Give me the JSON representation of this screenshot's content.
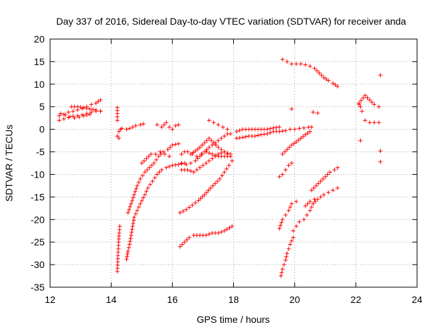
{
  "chart_data": {
    "type": "scatter",
    "title": "Day 337 of 2016, Sidereal Day-to-day VTEC variation (SDTVAR) for receiver anda",
    "xlabel": "GPS time / hours",
    "ylabel": "SDTVAR / TECUs",
    "xlim": [
      12,
      24
    ],
    "ylim": [
      -35,
      20
    ],
    "xticks": [
      12,
      14,
      16,
      18,
      20,
      22,
      24
    ],
    "yticks": [
      -35,
      -30,
      -25,
      -20,
      -15,
      -10,
      -5,
      0,
      5,
      10,
      15,
      20
    ],
    "grid": true,
    "marker": "plus",
    "color": "#ff0000",
    "series": [
      {
        "segments": [
          [
            [
              12.3,
              3.0
            ],
            [
              12.45,
              3.3
            ],
            [
              12.6,
              3.8
            ],
            [
              12.75,
              4.0
            ],
            [
              12.9,
              4.3
            ],
            [
              13.05,
              4.6
            ],
            [
              13.2,
              5.0
            ],
            [
              13.35,
              5.5
            ],
            [
              13.5,
              5.8
            ],
            [
              13.65,
              6.5
            ]
          ],
          [
            [
              12.3,
              2.0
            ],
            [
              12.45,
              2.3
            ],
            [
              12.6,
              2.6
            ],
            [
              12.75,
              2.9
            ],
            [
              12.9,
              3.0
            ],
            [
              13.05,
              3.2
            ],
            [
              13.2,
              3.5
            ],
            [
              13.35,
              3.8
            ],
            [
              13.5,
              4.0
            ],
            [
              13.65,
              4.0
            ]
          ],
          [
            [
              12.35,
              3.5
            ],
            [
              12.5,
              3.2
            ],
            [
              12.65,
              2.8
            ],
            [
              12.8,
              2.5
            ],
            [
              12.95,
              2.7
            ],
            [
              13.1,
              3.0
            ],
            [
              13.3,
              3.3
            ]
          ],
          [
            [
              12.7,
              5.0
            ],
            [
              12.9,
              5.0
            ],
            [
              13.1,
              4.8
            ],
            [
              13.3,
              4.5
            ],
            [
              13.5,
              4.3
            ],
            [
              13.65,
              4.0
            ]
          ]
        ]
      },
      {
        "segments": [
          [
            [
              14.2,
              4.8
            ],
            [
              14.2,
              3.5
            ],
            [
              14.2,
              2.0
            ]
          ],
          [
            [
              14.25,
              -0.5
            ],
            [
              14.3,
              0
            ],
            [
              14.35,
              0.2
            ]
          ],
          [
            [
              14.2,
              -1.5
            ],
            [
              14.25,
              -2.0
            ]
          ],
          [
            [
              14.5,
              0
            ],
            [
              14.6,
              0.2
            ],
            [
              14.7,
              0.5
            ],
            [
              14.8,
              0.8
            ],
            [
              14.95,
              1.0
            ],
            [
              15.05,
              1.2
            ]
          ],
          [
            [
              14.2,
              -31.5
            ],
            [
              14.22,
              -28.0
            ],
            [
              14.24,
              -25.0
            ],
            [
              14.26,
              -23.0
            ],
            [
              14.28,
              -21.5
            ]
          ],
          [
            [
              14.5,
              -28.8
            ],
            [
              14.55,
              -27.0
            ],
            [
              14.6,
              -25.5
            ],
            [
              14.65,
              -23.5
            ],
            [
              14.7,
              -21.5
            ],
            [
              14.75,
              -19.5
            ],
            [
              14.85,
              -18.0
            ],
            [
              14.95,
              -16.5
            ],
            [
              15.1,
              -14.5
            ],
            [
              15.2,
              -13.0
            ],
            [
              15.35,
              -11.5
            ],
            [
              15.5,
              -10.0
            ],
            [
              15.65,
              -9.0
            ],
            [
              15.8,
              -8.5
            ],
            [
              16.0,
              -8.0
            ],
            [
              16.2,
              -7.8
            ],
            [
              16.4,
              -7.5
            ]
          ],
          [
            [
              14.55,
              -18.5
            ],
            [
              14.65,
              -16.5
            ],
            [
              14.75,
              -14.5
            ],
            [
              14.85,
              -12.5
            ],
            [
              14.95,
              -11.0
            ],
            [
              15.1,
              -9.5
            ],
            [
              15.25,
              -8.5
            ],
            [
              15.4,
              -7.5
            ],
            [
              15.55,
              -6.0
            ],
            [
              15.7,
              -5.0
            ],
            [
              15.85,
              -4.5
            ],
            [
              16.0,
              -3.5
            ],
            [
              16.2,
              -3.2
            ]
          ],
          [
            [
              15.0,
              -7.5
            ],
            [
              15.15,
              -6.5
            ],
            [
              15.3,
              -5.5
            ],
            [
              15.45,
              -5.5
            ],
            [
              15.6,
              -5.0
            ],
            [
              15.75,
              -5.5
            ],
            [
              15.9,
              -6.0
            ]
          ],
          [
            [
              15.5,
              1.0
            ],
            [
              15.65,
              0.5
            ],
            [
              15.8,
              1.5
            ],
            [
              15.9,
              0.5
            ],
            [
              16.0,
              0
            ],
            [
              16.1,
              0.8
            ],
            [
              16.2,
              1.0
            ]
          ]
        ]
      },
      {
        "segments": [
          [
            [
              16.3,
              -5.5
            ],
            [
              16.4,
              -5.0
            ],
            [
              16.5,
              -5.0
            ],
            [
              16.65,
              -5.5
            ],
            [
              16.8,
              -6.0
            ],
            [
              16.95,
              -5.5
            ],
            [
              17.1,
              -5.0
            ],
            [
              17.3,
              -5.5
            ],
            [
              17.5,
              -6.0
            ],
            [
              17.7,
              -6.0
            ],
            [
              17.9,
              -6.0
            ]
          ],
          [
            [
              16.3,
              -7.5
            ],
            [
              16.45,
              -7.8
            ],
            [
              16.6,
              -7.5
            ],
            [
              16.75,
              -7.0
            ],
            [
              16.9,
              -6.0
            ],
            [
              17.05,
              -5.0
            ],
            [
              17.2,
              -4.0
            ],
            [
              17.4,
              -3.0
            ],
            [
              17.6,
              -2.0
            ],
            [
              17.8,
              -1.0
            ],
            [
              17.9,
              -1.0
            ]
          ],
          [
            [
              16.3,
              -9.0
            ],
            [
              16.5,
              -9.0
            ],
            [
              16.7,
              -9.5
            ],
            [
              16.9,
              -8.5
            ],
            [
              17.1,
              -7.5
            ],
            [
              17.3,
              -6.5
            ],
            [
              17.5,
              -5.5
            ],
            [
              17.7,
              -5.0
            ],
            [
              17.9,
              -5.5
            ]
          ],
          [
            [
              16.6,
              -5.5
            ],
            [
              16.75,
              -4.8
            ],
            [
              16.9,
              -4.0
            ],
            [
              17.05,
              -3.0
            ],
            [
              17.2,
              -2.0
            ],
            [
              17.35,
              -3.0
            ],
            [
              17.5,
              -4.0
            ],
            [
              17.7,
              -5.0
            ],
            [
              17.9,
              -6.0
            ]
          ],
          [
            [
              17.2,
              2.0
            ],
            [
              17.35,
              1.5
            ],
            [
              17.5,
              1.0
            ],
            [
              17.65,
              0.5
            ],
            [
              17.8,
              0
            ]
          ],
          [
            [
              16.25,
              -18.5
            ],
            [
              16.45,
              -17.8
            ],
            [
              16.65,
              -16.8
            ],
            [
              16.85,
              -15.8
            ],
            [
              17.05,
              -14.5
            ],
            [
              17.25,
              -13.0
            ],
            [
              17.4,
              -12.0
            ],
            [
              17.55,
              -11.0
            ],
            [
              17.7,
              -9.5
            ],
            [
              17.85,
              -8.0
            ],
            [
              17.95,
              -7.0
            ]
          ],
          [
            [
              16.25,
              -26.0
            ],
            [
              16.4,
              -25.0
            ],
            [
              16.55,
              -24.0
            ],
            [
              16.7,
              -23.5
            ],
            [
              16.9,
              -23.5
            ],
            [
              17.1,
              -23.5
            ],
            [
              17.3,
              -23.0
            ],
            [
              17.5,
              -23.0
            ],
            [
              17.7,
              -22.5
            ],
            [
              17.95,
              -21.5
            ]
          ]
        ]
      },
      {
        "segments": [
          [
            [
              18.1,
              -0.5
            ],
            [
              18.3,
              0
            ],
            [
              18.5,
              0
            ],
            [
              18.7,
              0
            ],
            [
              18.9,
              0
            ],
            [
              19.1,
              0
            ],
            [
              19.3,
              0.3
            ],
            [
              19.5,
              0.5
            ]
          ],
          [
            [
              18.1,
              -2.0
            ],
            [
              18.3,
              -1.8
            ],
            [
              18.5,
              -1.5
            ],
            [
              18.7,
              -1.5
            ],
            [
              18.9,
              -1.2
            ],
            [
              19.1,
              -1.0
            ],
            [
              19.3,
              -0.5
            ],
            [
              19.5,
              -0.5
            ],
            [
              19.7,
              -0.3
            ],
            [
              19.85,
              0
            ]
          ],
          [
            [
              20.0,
              0
            ],
            [
              20.15,
              0.2
            ],
            [
              20.3,
              0.3
            ],
            [
              20.45,
              0.5
            ],
            [
              20.55,
              0.5
            ]
          ]
        ]
      },
      {
        "segments": [
          [
            [
              19.6,
              15.5
            ],
            [
              19.75,
              15.0
            ],
            [
              19.9,
              14.5
            ],
            [
              20.05,
              14.5
            ],
            [
              20.2,
              14.5
            ],
            [
              20.35,
              14.3
            ],
            [
              20.5,
              14.0
            ],
            [
              20.65,
              13.5
            ],
            [
              20.8,
              12.5
            ],
            [
              20.95,
              11.5
            ],
            [
              21.1,
              10.8
            ],
            [
              21.25,
              10.2
            ],
            [
              21.4,
              9.5
            ]
          ],
          [
            [
              19.9,
              4.5
            ]
          ],
          [
            [
              20.6,
              3.8
            ],
            [
              20.75,
              3.6
            ]
          ],
          [
            [
              19.6,
              -5.5
            ],
            [
              19.75,
              -4.5
            ],
            [
              19.9,
              -3.5
            ],
            [
              20.05,
              -2.8
            ],
            [
              20.2,
              -2.0
            ],
            [
              20.35,
              -1.2
            ],
            [
              20.5,
              -0.5
            ]
          ],
          [
            [
              19.5,
              -10.5
            ],
            [
              19.6,
              -10.0
            ],
            [
              19.7,
              -9.0
            ],
            [
              19.8,
              -8.0
            ],
            [
              19.9,
              -7.5
            ]
          ],
          [
            [
              19.5,
              -22.0
            ],
            [
              19.6,
              -20.0
            ],
            [
              19.7,
              -19.0
            ],
            [
              19.8,
              -18.0
            ],
            [
              19.9,
              -16.5
            ],
            [
              20.05,
              -16.0
            ]
          ],
          [
            [
              19.55,
              -32.5
            ],
            [
              19.6,
              -31.0
            ],
            [
              19.65,
              -30.0
            ],
            [
              19.7,
              -29.0
            ],
            [
              19.75,
              -27.5
            ],
            [
              19.8,
              -26.5
            ],
            [
              19.85,
              -25.5
            ],
            [
              19.95,
              -24.0
            ]
          ],
          [
            [
              19.95,
              -22.5
            ],
            [
              20.05,
              -21.5
            ],
            [
              20.15,
              -20.5
            ],
            [
              20.3,
              -20.0
            ],
            [
              20.4,
              -19.0
            ],
            [
              20.5,
              -18.0
            ],
            [
              20.6,
              -16.5
            ],
            [
              20.75,
              -15.5
            ],
            [
              20.95,
              -14.5
            ],
            [
              21.1,
              -14.0
            ],
            [
              21.25,
              -13.5
            ],
            [
              21.4,
              -13.0
            ]
          ],
          [
            [
              20.55,
              -13.5
            ],
            [
              20.7,
              -12.5
            ],
            [
              20.85,
              -11.5
            ],
            [
              21.0,
              -10.5
            ],
            [
              21.15,
              -9.5
            ],
            [
              21.3,
              -9.0
            ],
            [
              21.4,
              -8.5
            ]
          ],
          [
            [
              20.35,
              -17.0
            ],
            [
              20.5,
              -16.0
            ],
            [
              20.65,
              -15.5
            ]
          ]
        ]
      },
      {
        "segments": [
          [
            [
              22.1,
              5.5
            ],
            [
              22.15,
              5.0
            ],
            [
              22.2,
              4.0
            ]
          ],
          [
            [
              22.1,
              5.8
            ],
            [
              22.3,
              7.5
            ],
            [
              22.45,
              6.5
            ],
            [
              22.6,
              5.5
            ],
            [
              22.75,
              5.0
            ]
          ],
          [
            [
              22.3,
              2.0
            ],
            [
              22.45,
              1.5
            ],
            [
              22.6,
              1.5
            ]
          ],
          [
            [
              22.15,
              -2.5
            ]
          ],
          [
            [
              22.75,
              1.5
            ]
          ],
          [
            [
              22.8,
              12.0
            ]
          ],
          [
            [
              22.8,
              -4.8
            ]
          ],
          [
            [
              22.8,
              -7.2
            ]
          ]
        ]
      }
    ]
  }
}
